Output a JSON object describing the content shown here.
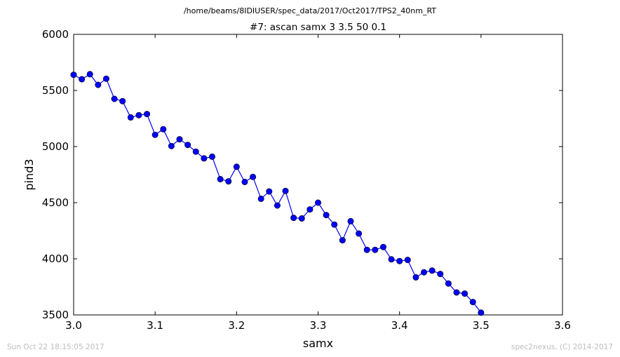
{
  "header": {
    "file_path": "/home/beams/8IDIUSER/spec_data/2017/Oct2017/TPS2_40nm_RT"
  },
  "footer": {
    "timestamp": "Sun Oct 22 18:15:05 2017",
    "credit": "spec2nexus, (C) 2014-2017"
  },
  "chart_data": {
    "type": "line",
    "title": "#7: ascan  samx 3 3.5  50 0.1",
    "xlabel": "samx",
    "ylabel": "pind3",
    "xlim": [
      3.0,
      3.6
    ],
    "ylim": [
      3500,
      6000
    ],
    "xticks": [
      "3.0",
      "3.1",
      "3.2",
      "3.3",
      "3.4",
      "3.5",
      "3.6"
    ],
    "yticks": [
      "3500",
      "4000",
      "4500",
      "5000",
      "5500",
      "6000"
    ],
    "grid": false,
    "line_color": "#0000ff",
    "marker": "circle",
    "x": [
      3.0,
      3.01,
      3.02,
      3.03,
      3.04,
      3.05,
      3.06,
      3.07,
      3.08,
      3.09,
      3.1,
      3.11,
      3.12,
      3.13,
      3.14,
      3.15,
      3.16,
      3.17,
      3.18,
      3.19,
      3.2,
      3.21,
      3.22,
      3.23,
      3.24,
      3.25,
      3.26,
      3.27,
      3.28,
      3.29,
      3.3,
      3.31,
      3.32,
      3.33,
      3.34,
      3.35,
      3.36,
      3.37,
      3.38,
      3.39,
      3.4,
      3.41,
      3.42,
      3.43,
      3.44,
      3.45,
      3.46,
      3.47,
      3.48,
      3.49,
      3.5
    ],
    "y": [
      5640,
      5600,
      5645,
      5550,
      5605,
      5425,
      5405,
      5260,
      5280,
      5290,
      5105,
      5155,
      5005,
      5065,
      5015,
      4955,
      4895,
      4910,
      4710,
      4690,
      4820,
      4685,
      4730,
      4535,
      4600,
      4475,
      4605,
      4365,
      4360,
      4440,
      4500,
      4390,
      4305,
      4165,
      4335,
      4225,
      4080,
      4080,
      4105,
      3995,
      3980,
      3990,
      3835,
      3880,
      3895,
      3865,
      3780,
      3700,
      3690,
      3615,
      3520
    ]
  }
}
